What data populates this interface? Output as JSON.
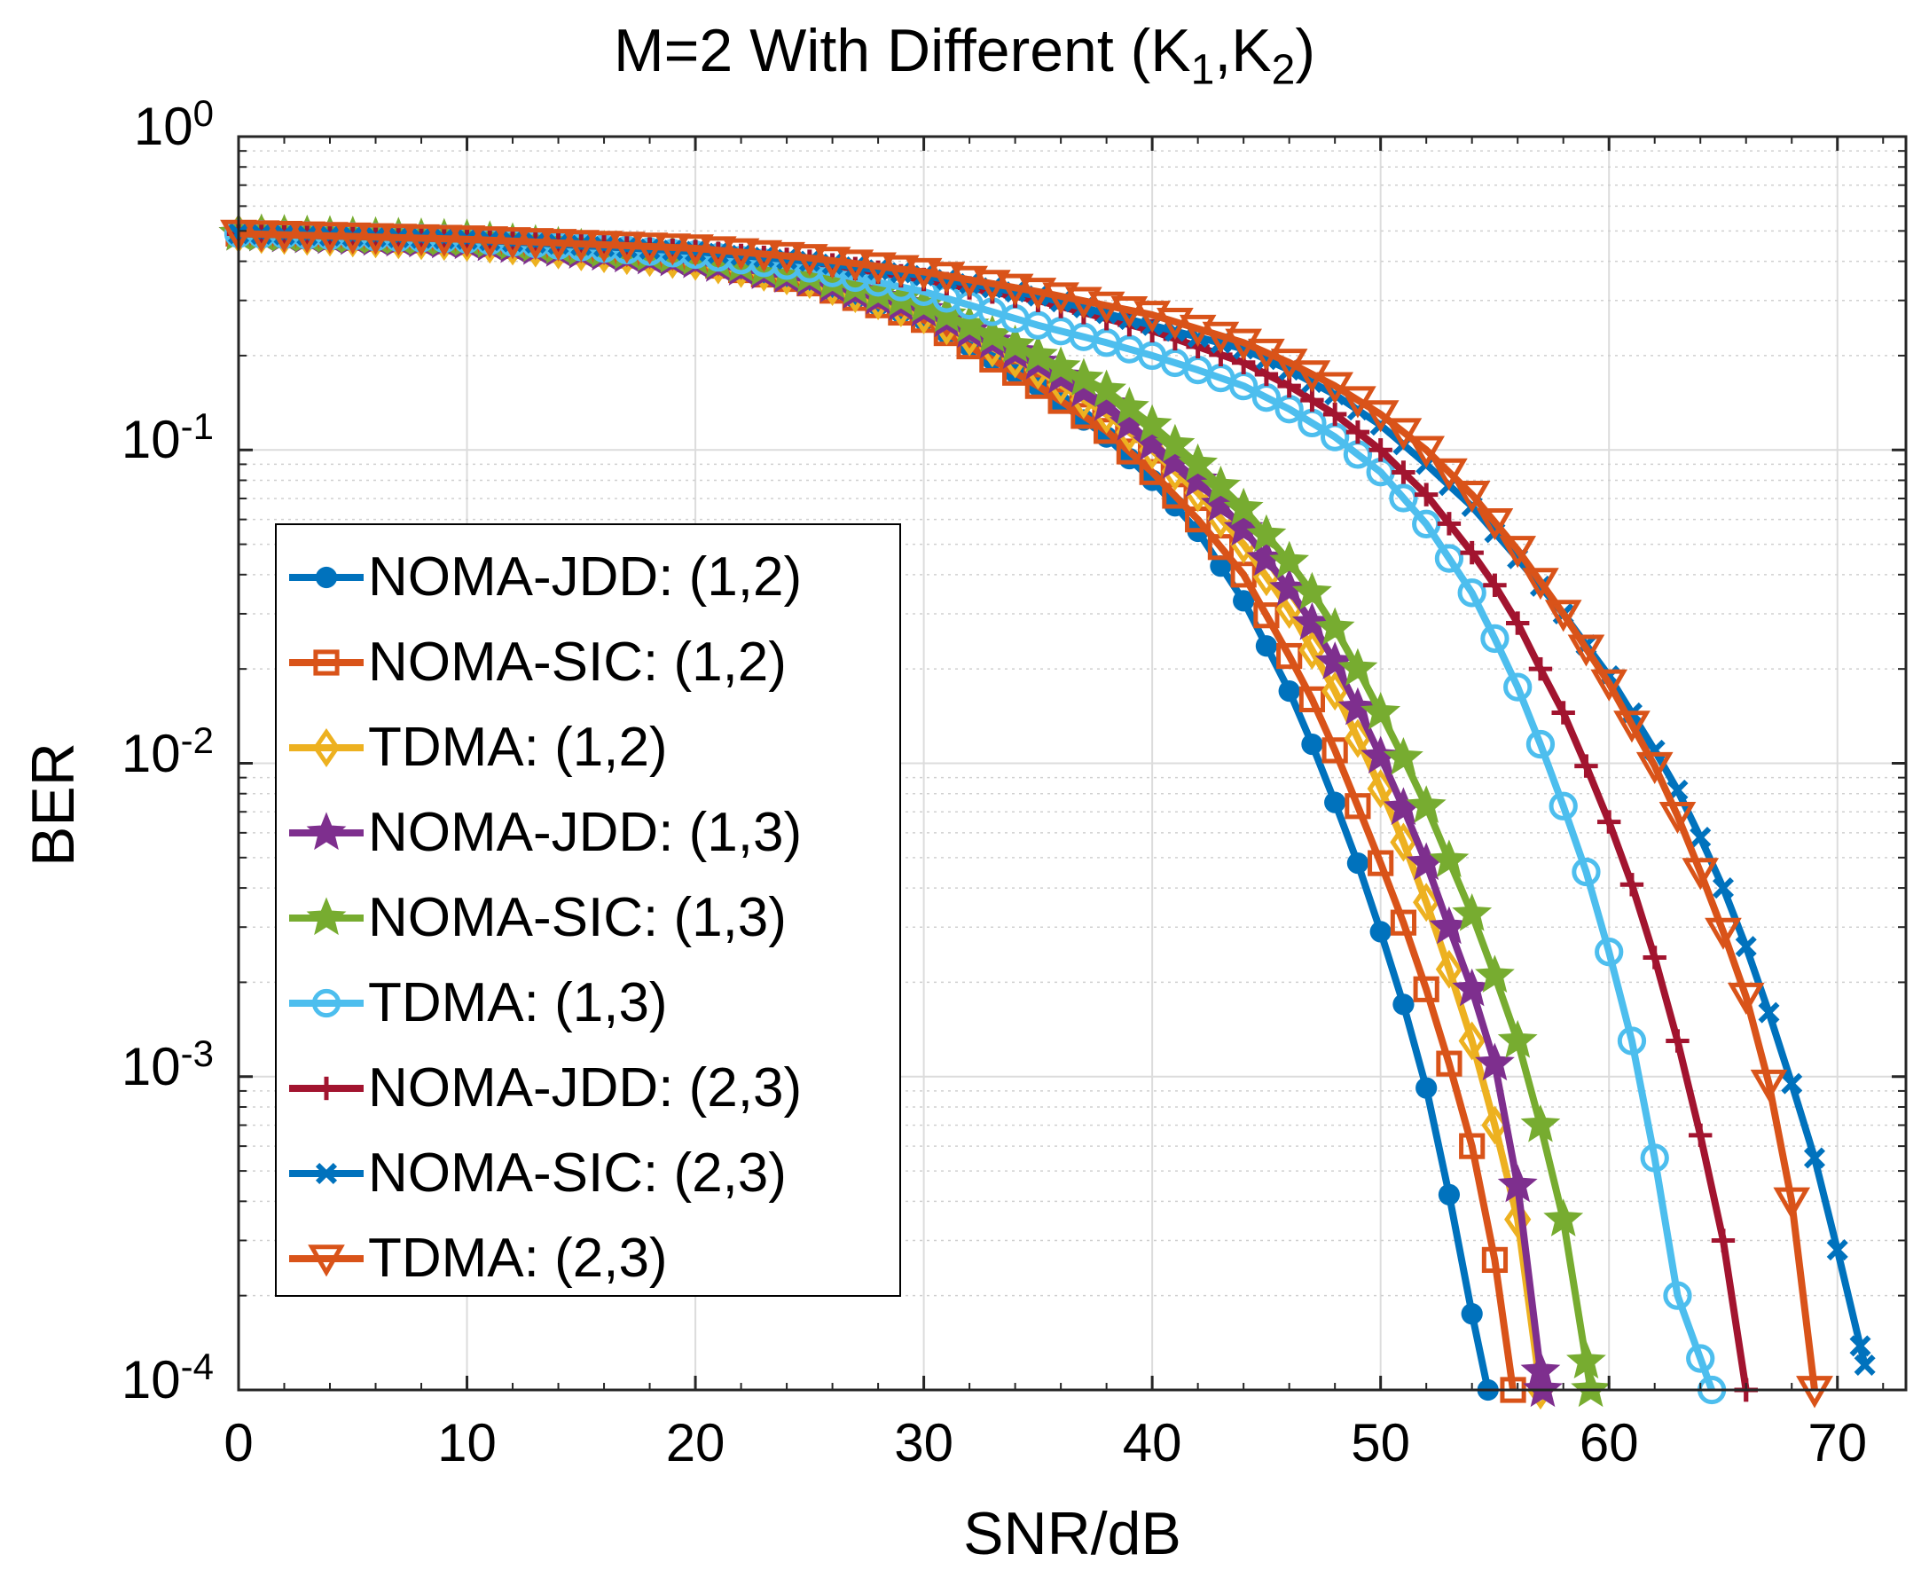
{
  "chart_data": {
    "type": "line",
    "title_main": "M=2 With Different (K",
    "title_sub1": "1",
    "title_comma": ",K",
    "title_sub2": "2",
    "title_end": ")",
    "xlabel": "SNR/dB",
    "ylabel": "BER",
    "xlim": [
      0,
      73
    ],
    "ylim": [
      0.0001,
      1
    ],
    "yscale": "log",
    "grid": true,
    "legend_position": "middle-left",
    "x_ticks": [
      "0",
      "10",
      "20",
      "30",
      "40",
      "50",
      "60",
      "70"
    ],
    "y_ticks": [
      {
        "base": "10",
        "exp": "0"
      },
      {
        "base": "10",
        "exp": "-1"
      },
      {
        "base": "10",
        "exp": "-2"
      },
      {
        "base": "10",
        "exp": "-3"
      },
      {
        "base": "10",
        "exp": "-4"
      }
    ],
    "series": [
      {
        "name": "NOMA-JDD: (1,2)",
        "color": "#0072BD",
        "marker": "dot",
        "x": [
          0,
          10,
          20,
          25,
          30,
          35,
          38,
          40,
          42,
          44,
          46,
          47,
          48,
          49,
          50,
          51,
          52,
          53,
          54,
          54.7
        ],
        "y": [
          0.49,
          0.46,
          0.4,
          0.34,
          0.26,
          0.16,
          0.11,
          0.08,
          0.055,
          0.033,
          0.017,
          0.0115,
          0.0075,
          0.0048,
          0.0029,
          0.0017,
          0.00092,
          0.00042,
          0.000175,
          0.0001
        ]
      },
      {
        "name": "NOMA-SIC: (1,2)",
        "color": "#D95319",
        "marker": "square",
        "x": [
          0,
          10,
          20,
          25,
          30,
          35,
          38,
          40,
          42,
          44,
          46,
          47,
          48,
          49,
          50,
          51,
          52,
          53,
          54,
          55,
          55.8
        ],
        "y": [
          0.49,
          0.46,
          0.4,
          0.34,
          0.26,
          0.16,
          0.115,
          0.085,
          0.06,
          0.04,
          0.022,
          0.016,
          0.011,
          0.0073,
          0.0048,
          0.0031,
          0.0019,
          0.0011,
          0.0006,
          0.00026,
          0.0001
        ]
      },
      {
        "name": "TDMA: (1,2)",
        "color": "#EDB120",
        "marker": "diamond",
        "x": [
          0,
          10,
          20,
          25,
          30,
          35,
          38,
          40,
          42,
          44,
          46,
          48,
          49,
          50,
          51,
          52,
          53,
          54,
          55,
          56,
          57
        ],
        "y": [
          0.49,
          0.46,
          0.4,
          0.35,
          0.27,
          0.18,
          0.13,
          0.1,
          0.073,
          0.05,
          0.031,
          0.017,
          0.012,
          0.0083,
          0.0056,
          0.0036,
          0.0022,
          0.0013,
          0.0007,
          0.00035,
          0.0001
        ]
      },
      {
        "name": "NOMA-JDD: (1,3)",
        "color": "#7E2F8E",
        "marker": "star",
        "x": [
          0,
          10,
          20,
          25,
          30,
          35,
          38,
          40,
          42,
          44,
          46,
          47,
          48,
          49,
          50,
          51,
          52,
          53,
          54,
          55,
          56,
          57.1
        ],
        "y": [
          0.49,
          0.46,
          0.4,
          0.35,
          0.28,
          0.19,
          0.14,
          0.105,
          0.08,
          0.056,
          0.036,
          0.028,
          0.021,
          0.015,
          0.0105,
          0.0072,
          0.0048,
          0.003,
          0.0019,
          0.0011,
          0.00045,
          0.0001
        ]
      },
      {
        "name": "NOMA-SIC: (1,3)",
        "color": "#77AC30",
        "marker": "star",
        "x": [
          0,
          10,
          20,
          25,
          30,
          35,
          38,
          40,
          42,
          44,
          46,
          47,
          48,
          49,
          50,
          51,
          52,
          53,
          54,
          55,
          56,
          57,
          58,
          59.2
        ],
        "y": [
          0.49,
          0.47,
          0.41,
          0.36,
          0.29,
          0.2,
          0.155,
          0.12,
          0.09,
          0.065,
          0.044,
          0.035,
          0.027,
          0.02,
          0.0145,
          0.0104,
          0.0073,
          0.0049,
          0.0033,
          0.0021,
          0.0013,
          0.0007,
          0.00035,
          0.0001
        ]
      },
      {
        "name": "TDMA: (1,3)",
        "color": "#4DBEEE",
        "marker": "circle",
        "x": [
          0,
          10,
          20,
          25,
          30,
          35,
          38,
          40,
          42,
          44,
          46,
          48,
          50,
          52,
          54,
          55,
          56,
          57,
          58,
          59,
          60,
          61,
          62,
          63,
          64.5
        ],
        "y": [
          0.49,
          0.47,
          0.42,
          0.38,
          0.32,
          0.25,
          0.22,
          0.2,
          0.18,
          0.16,
          0.135,
          0.11,
          0.085,
          0.058,
          0.035,
          0.025,
          0.0175,
          0.0115,
          0.0073,
          0.0045,
          0.0025,
          0.0013,
          0.00055,
          0.0002,
          0.0001
        ]
      },
      {
        "name": "NOMA-JDD: (2,3)",
        "color": "#A2142F",
        "marker": "plus",
        "x": [
          0,
          10,
          20,
          25,
          30,
          35,
          40,
          44,
          46,
          48,
          50,
          52,
          54,
          55,
          56,
          57,
          58,
          59,
          60,
          61,
          62,
          63,
          64,
          65,
          66
        ],
        "y": [
          0.49,
          0.47,
          0.43,
          0.4,
          0.35,
          0.3,
          0.24,
          0.19,
          0.16,
          0.13,
          0.1,
          0.072,
          0.047,
          0.037,
          0.028,
          0.02,
          0.0145,
          0.0098,
          0.0065,
          0.0041,
          0.0024,
          0.0013,
          0.00065,
          0.0003,
          0.0001
        ]
      },
      {
        "name": "NOMA-SIC: (2,3)",
        "color": "#0072BD",
        "marker": "x",
        "x": [
          0,
          10,
          20,
          25,
          30,
          35,
          40,
          44,
          46,
          48,
          50,
          52,
          54,
          56,
          58,
          60,
          62,
          63,
          64,
          65,
          66,
          67,
          68,
          69,
          70,
          71.2
        ],
        "y": [
          0.49,
          0.47,
          0.43,
          0.4,
          0.36,
          0.31,
          0.25,
          0.21,
          0.18,
          0.15,
          0.12,
          0.09,
          0.066,
          0.045,
          0.03,
          0.019,
          0.011,
          0.0082,
          0.0058,
          0.004,
          0.0026,
          0.0016,
          0.00095,
          0.00055,
          0.00028,
          0.00012
        ]
      },
      {
        "name": "TDMA: (2,3)",
        "color": "#D95319",
        "marker": "triangle-down",
        "x": [
          0,
          10,
          20,
          25,
          30,
          35,
          40,
          44,
          46,
          48,
          50,
          52,
          54,
          56,
          58,
          60,
          62,
          63,
          64,
          65,
          66,
          67,
          68,
          69
        ],
        "y": [
          0.49,
          0.47,
          0.44,
          0.41,
          0.37,
          0.32,
          0.27,
          0.22,
          0.19,
          0.16,
          0.13,
          0.1,
          0.072,
          0.048,
          0.03,
          0.018,
          0.0098,
          0.0068,
          0.0045,
          0.0029,
          0.0018,
          0.00095,
          0.0004,
          0.0001
        ]
      }
    ]
  }
}
